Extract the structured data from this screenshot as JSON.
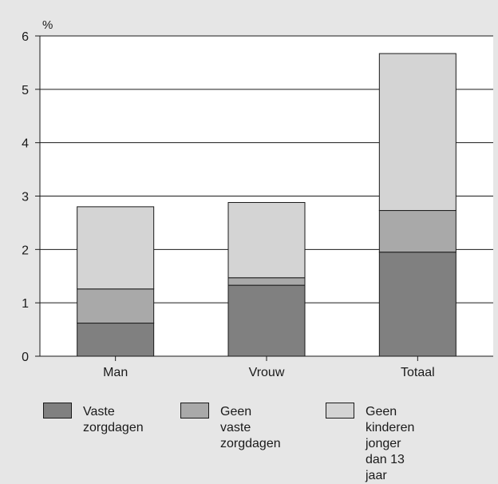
{
  "chart_data": {
    "type": "bar",
    "stacked": true,
    "ylabel": "%",
    "ylim": [
      0,
      6
    ],
    "yticks": [
      "0",
      "1",
      "2",
      "3",
      "4",
      "5",
      "6"
    ],
    "categories": [
      "Man",
      "Vrouw",
      "Totaal"
    ],
    "series": [
      {
        "name": "Vaste\nzorgdagen",
        "color": "#808080",
        "values": [
          0.62,
          1.33,
          1.95
        ]
      },
      {
        "name": "Geen vaste\nzorgdagen",
        "color": "#a9a9a9",
        "values": [
          0.64,
          0.14,
          0.78
        ]
      },
      {
        "name": "Geen kinderen\njonger dan 13 jaar",
        "color": "#d4d4d4",
        "values": [
          1.54,
          1.41,
          2.94
        ]
      }
    ],
    "grid": true,
    "legend_position": "bottom"
  }
}
